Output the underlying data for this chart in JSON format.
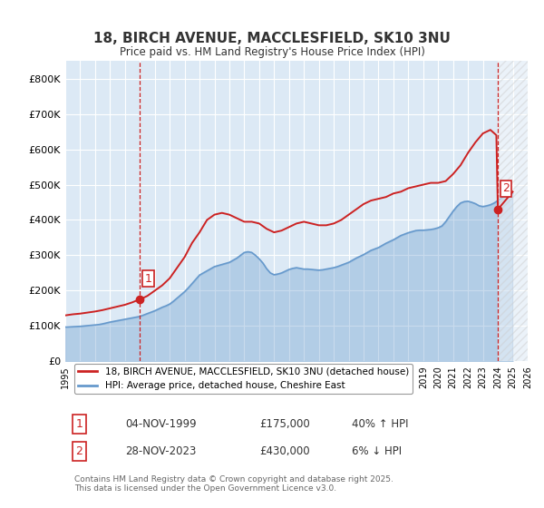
{
  "title": "18, BIRCH AVENUE, MACCLESFIELD, SK10 3NU",
  "subtitle": "Price paid vs. HM Land Registry's House Price Index (HPI)",
  "background_color": "#ffffff",
  "plot_bg_color": "#dce9f5",
  "grid_color": "#ffffff",
  "xlim": [
    1995.0,
    2026.0
  ],
  "ylim": [
    0,
    850000
  ],
  "yticks": [
    0,
    100000,
    200000,
    300000,
    400000,
    500000,
    600000,
    700000,
    800000
  ],
  "ytick_labels": [
    "£0",
    "£100K",
    "£200K",
    "£300K",
    "£400K",
    "£500K",
    "£600K",
    "£700K",
    "£800K"
  ],
  "xticks": [
    1995,
    1996,
    1997,
    1998,
    1999,
    2000,
    2001,
    2002,
    2003,
    2004,
    2005,
    2006,
    2007,
    2008,
    2009,
    2010,
    2011,
    2012,
    2013,
    2014,
    2015,
    2016,
    2017,
    2018,
    2019,
    2020,
    2021,
    2022,
    2023,
    2024,
    2025,
    2026
  ],
  "hpi_color": "#6699cc",
  "price_color": "#cc2222",
  "legend_label_price": "18, BIRCH AVENUE, MACCLESFIELD, SK10 3NU (detached house)",
  "legend_label_hpi": "HPI: Average price, detached house, Cheshire East",
  "marker1_x": 2000.0,
  "marker1_y": 175000,
  "marker1_label": "1",
  "marker2_x": 2024.0,
  "marker2_y": 430000,
  "marker2_label": "2",
  "vline1_x": 2000.0,
  "vline2_x": 2024.0,
  "table_data": [
    {
      "num": "1",
      "date": "04-NOV-1999",
      "price": "£175,000",
      "hpi": "40% ↑ HPI"
    },
    {
      "num": "2",
      "date": "28-NOV-2023",
      "price": "£430,000",
      "hpi": "6% ↓ HPI"
    }
  ],
  "footer": "Contains HM Land Registry data © Crown copyright and database right 2025.\nThis data is licensed under the Open Government Licence v3.0.",
  "hpi_series_x": [
    1995.0,
    1995.25,
    1995.5,
    1995.75,
    1996.0,
    1996.25,
    1996.5,
    1996.75,
    1997.0,
    1997.25,
    1997.5,
    1997.75,
    1998.0,
    1998.25,
    1998.5,
    1998.75,
    1999.0,
    1999.25,
    1999.5,
    1999.75,
    2000.0,
    2000.25,
    2000.5,
    2000.75,
    2001.0,
    2001.25,
    2001.5,
    2001.75,
    2002.0,
    2002.25,
    2002.5,
    2002.75,
    2003.0,
    2003.25,
    2003.5,
    2003.75,
    2004.0,
    2004.25,
    2004.5,
    2004.75,
    2005.0,
    2005.25,
    2005.5,
    2005.75,
    2006.0,
    2006.25,
    2006.5,
    2006.75,
    2007.0,
    2007.25,
    2007.5,
    2007.75,
    2008.0,
    2008.25,
    2008.5,
    2008.75,
    2009.0,
    2009.25,
    2009.5,
    2009.75,
    2010.0,
    2010.25,
    2010.5,
    2010.75,
    2011.0,
    2011.25,
    2011.5,
    2011.75,
    2012.0,
    2012.25,
    2012.5,
    2012.75,
    2013.0,
    2013.25,
    2013.5,
    2013.75,
    2014.0,
    2014.25,
    2014.5,
    2014.75,
    2015.0,
    2015.25,
    2015.5,
    2015.75,
    2016.0,
    2016.25,
    2016.5,
    2016.75,
    2017.0,
    2017.25,
    2017.5,
    2017.75,
    2018.0,
    2018.25,
    2018.5,
    2018.75,
    2019.0,
    2019.25,
    2019.5,
    2019.75,
    2020.0,
    2020.25,
    2020.5,
    2020.75,
    2021.0,
    2021.25,
    2021.5,
    2021.75,
    2022.0,
    2022.25,
    2022.5,
    2022.75,
    2023.0,
    2023.25,
    2023.5,
    2023.75,
    2024.0,
    2024.25,
    2024.5,
    2024.75,
    2025.0
  ],
  "hpi_series_y": [
    97000,
    97500,
    98000,
    98500,
    99000,
    100000,
    101000,
    102000,
    103000,
    104000,
    106000,
    108500,
    111000,
    113000,
    115000,
    117000,
    119000,
    121000,
    123000,
    125000,
    127000,
    131000,
    135000,
    139000,
    143000,
    148000,
    153000,
    157000,
    162000,
    170000,
    179000,
    188000,
    197000,
    208000,
    220000,
    232000,
    244000,
    250000,
    256000,
    262000,
    268000,
    271000,
    274000,
    277000,
    280000,
    286000,
    292000,
    300000,
    308000,
    310000,
    308000,
    300000,
    290000,
    278000,
    262000,
    250000,
    245000,
    247000,
    250000,
    255000,
    260000,
    263000,
    265000,
    263000,
    261000,
    261000,
    260000,
    259000,
    258000,
    259000,
    261000,
    263000,
    265000,
    268000,
    272000,
    276000,
    280000,
    286000,
    292000,
    297000,
    302000,
    308000,
    314000,
    318000,
    322000,
    328000,
    334000,
    339000,
    344000,
    350000,
    356000,
    360000,
    364000,
    367000,
    370000,
    371000,
    371000,
    372000,
    373000,
    375000,
    378000,
    383000,
    395000,
    410000,
    425000,
    438000,
    448000,
    452000,
    453000,
    450000,
    446000,
    440000,
    438000,
    440000,
    443000,
    448000,
    455000,
    462000,
    468000,
    472000,
    475000
  ],
  "price_series_x": [
    1995.0,
    1995.5,
    1996.0,
    1996.5,
    1997.0,
    1997.5,
    1998.0,
    1998.5,
    1999.0,
    1999.5,
    1999.9,
    2000.0,
    2000.5,
    2001.0,
    2001.5,
    2002.0,
    2002.5,
    2003.0,
    2003.5,
    2004.0,
    2004.5,
    2005.0,
    2005.5,
    2006.0,
    2006.5,
    2007.0,
    2007.5,
    2008.0,
    2008.5,
    2009.0,
    2009.5,
    2010.0,
    2010.5,
    2011.0,
    2011.5,
    2012.0,
    2012.5,
    2013.0,
    2013.5,
    2014.0,
    2014.5,
    2015.0,
    2015.5,
    2016.0,
    2016.5,
    2017.0,
    2017.5,
    2018.0,
    2018.5,
    2019.0,
    2019.5,
    2020.0,
    2020.5,
    2021.0,
    2021.5,
    2022.0,
    2022.5,
    2023.0,
    2023.5,
    2023.9,
    2024.0,
    2024.5,
    2025.0
  ],
  "price_series_y": [
    130000,
    133000,
    135000,
    138000,
    141000,
    145000,
    150000,
    155000,
    160000,
    167000,
    174000,
    175000,
    185000,
    200000,
    215000,
    235000,
    265000,
    295000,
    335000,
    365000,
    400000,
    415000,
    420000,
    415000,
    405000,
    395000,
    395000,
    390000,
    375000,
    365000,
    370000,
    380000,
    390000,
    395000,
    390000,
    385000,
    385000,
    390000,
    400000,
    415000,
    430000,
    445000,
    455000,
    460000,
    465000,
    475000,
    480000,
    490000,
    495000,
    500000,
    505000,
    505000,
    510000,
    530000,
    555000,
    590000,
    620000,
    645000,
    655000,
    640000,
    430000,
    455000,
    480000
  ]
}
